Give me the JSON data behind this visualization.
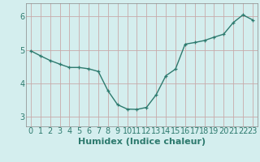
{
  "x": [
    0,
    1,
    2,
    3,
    4,
    5,
    6,
    7,
    8,
    9,
    10,
    11,
    12,
    13,
    14,
    15,
    16,
    17,
    18,
    19,
    20,
    21,
    22,
    23
  ],
  "y": [
    4.97,
    4.82,
    4.68,
    4.57,
    4.47,
    4.47,
    4.43,
    4.35,
    3.77,
    3.35,
    3.22,
    3.21,
    3.27,
    3.65,
    4.22,
    4.42,
    5.17,
    5.22,
    5.28,
    5.38,
    5.47,
    5.82,
    6.05,
    5.9
  ],
  "line_color": "#2d7a6e",
  "marker": "+",
  "marker_size": 3,
  "bg_color": "#d4eeee",
  "grid_color": "#c8aaaa",
  "title": "",
  "xlabel": "Humidex (Indice chaleur)",
  "ylabel": "",
  "xlim": [
    -0.5,
    23.5
  ],
  "ylim": [
    2.7,
    6.4
  ],
  "yticks": [
    3,
    4,
    5,
    6
  ],
  "xtick_labels": [
    "0",
    "1",
    "2",
    "3",
    "4",
    "5",
    "6",
    "7",
    "8",
    "9",
    "10",
    "11",
    "12",
    "13",
    "14",
    "15",
    "16",
    "17",
    "18",
    "19",
    "20",
    "21",
    "22",
    "23"
  ],
  "xlabel_fontsize": 8,
  "tick_fontsize": 7,
  "line_width": 1.0
}
